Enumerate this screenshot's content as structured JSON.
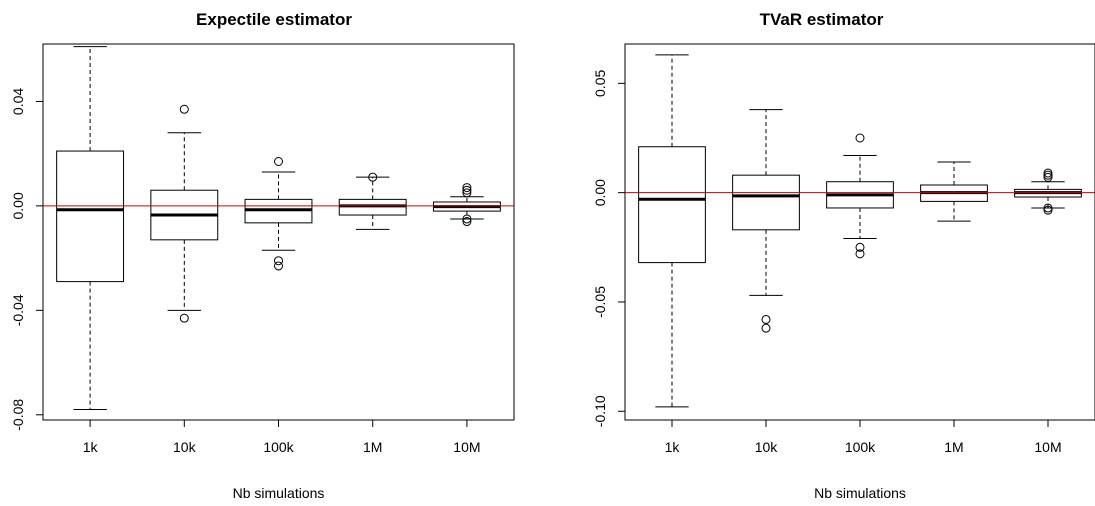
{
  "chart_data": [
    {
      "type": "boxplot",
      "title": "Expectile estimator",
      "xlabel": "Nb simulations",
      "ylabel": "",
      "categories": [
        "1k",
        "10k",
        "100k",
        "1M",
        "10M"
      ],
      "ylim": [
        -0.082,
        0.062
      ],
      "yticks": [
        -0.08,
        -0.04,
        0.0,
        0.04
      ],
      "ytick_labels": [
        "-0.08",
        "-0.04",
        "0.00",
        "0.04"
      ],
      "reference_line": 0,
      "reference_color": "#cc0000",
      "boxes": [
        {
          "category": "1k",
          "whisker_low": -0.078,
          "q1": -0.029,
          "median": -0.0015,
          "q3": 0.021,
          "whisker_high": 0.061,
          "outliers": []
        },
        {
          "category": "10k",
          "whisker_low": -0.04,
          "q1": -0.013,
          "median": -0.0035,
          "q3": 0.006,
          "whisker_high": 0.028,
          "outliers": [
            0.037,
            -0.043
          ]
        },
        {
          "category": "100k",
          "whisker_low": -0.017,
          "q1": -0.0065,
          "median": -0.0015,
          "q3": 0.0025,
          "whisker_high": 0.013,
          "outliers": [
            0.017,
            -0.021,
            -0.023
          ]
        },
        {
          "category": "1M",
          "whisker_low": -0.009,
          "q1": -0.0035,
          "median": 0.0,
          "q3": 0.0025,
          "whisker_high": 0.011,
          "outliers": [
            0.011
          ]
        },
        {
          "category": "10M",
          "whisker_low": -0.005,
          "q1": -0.002,
          "median": -0.0003,
          "q3": 0.0015,
          "whisker_high": 0.0035,
          "outliers": [
            0.007,
            0.006,
            0.005,
            -0.005,
            -0.006
          ]
        }
      ]
    },
    {
      "type": "boxplot",
      "title": "TVaR estimator",
      "xlabel": "Nb simulations",
      "ylabel": "",
      "categories": [
        "1k",
        "10k",
        "100k",
        "1M",
        "10M"
      ],
      "ylim": [
        -0.104,
        0.068
      ],
      "yticks": [
        -0.1,
        -0.05,
        0.0,
        0.05
      ],
      "ytick_labels": [
        "-0.10",
        "-0.05",
        "0.00",
        "0.05"
      ],
      "reference_line": 0,
      "reference_color": "#cc0000",
      "boxes": [
        {
          "category": "1k",
          "whisker_low": -0.098,
          "q1": -0.032,
          "median": -0.003,
          "q3": 0.021,
          "whisker_high": 0.063,
          "outliers": []
        },
        {
          "category": "10k",
          "whisker_low": -0.047,
          "q1": -0.017,
          "median": -0.0015,
          "q3": 0.008,
          "whisker_high": 0.038,
          "outliers": [
            -0.058,
            -0.062
          ]
        },
        {
          "category": "100k",
          "whisker_low": -0.021,
          "q1": -0.007,
          "median": -0.001,
          "q3": 0.005,
          "whisker_high": 0.017,
          "outliers": [
            0.025,
            -0.025,
            -0.028
          ]
        },
        {
          "category": "1M",
          "whisker_low": -0.013,
          "q1": -0.004,
          "median": 0.0,
          "q3": 0.0035,
          "whisker_high": 0.014,
          "outliers": []
        },
        {
          "category": "10M",
          "whisker_low": -0.007,
          "q1": -0.002,
          "median": 0.0,
          "q3": 0.0015,
          "whisker_high": 0.005,
          "outliers": [
            0.009,
            0.008,
            0.007,
            -0.007,
            -0.008
          ]
        }
      ]
    }
  ]
}
